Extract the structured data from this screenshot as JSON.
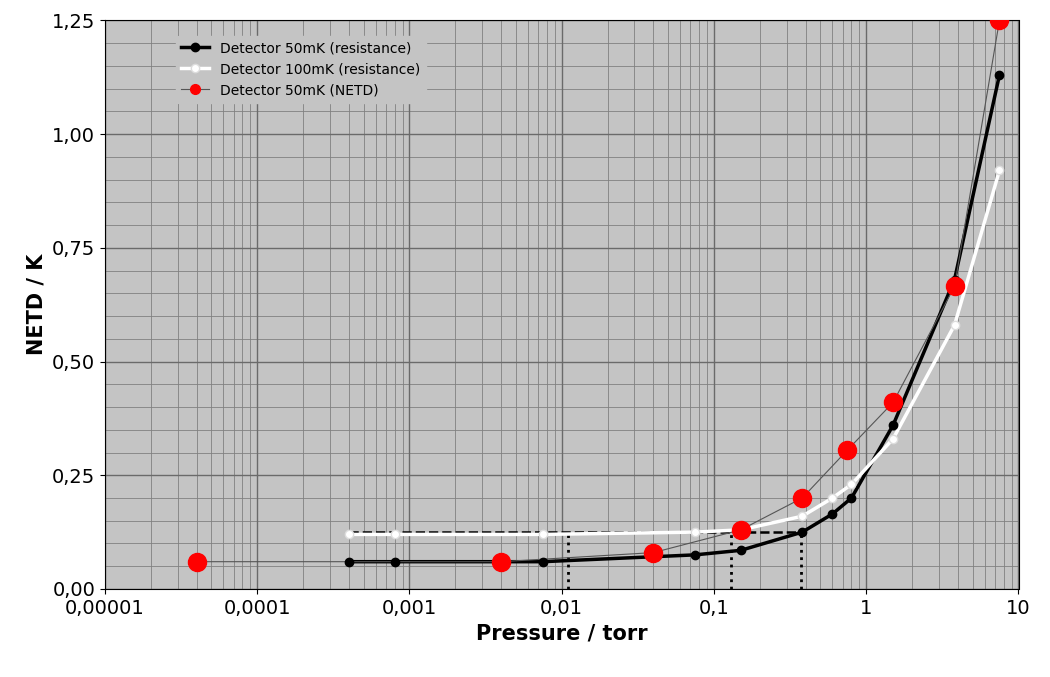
{
  "chart_data": {
    "type": "line",
    "x_label": "Pressure / torr",
    "y_label": "NETD / K",
    "log": "x",
    "grid": true,
    "legend": "upper left",
    "xlim": [
      1e-05,
      10
    ],
    "xticks": [
      {
        "value": 1e-05,
        "label": "0,00001"
      },
      {
        "value": 0.0001,
        "label": "0,0001"
      },
      {
        "value": 0.001,
        "label": "0,001"
      },
      {
        "value": 0.01,
        "label": "0,01"
      },
      {
        "value": 0.1,
        "label": "0,1"
      },
      1,
      10
    ],
    "ylim": [
      0,
      1.25
    ],
    "yticks": [
      {
        "value": 0,
        "label": "0,00"
      },
      {
        "value": 0.25,
        "label": "0,25"
      },
      {
        "value": 0.5,
        "label": "0,50"
      },
      {
        "value": 0.75,
        "label": "0,75"
      },
      {
        "value": 1.0,
        "label": "1,00"
      },
      {
        "value": 1.25,
        "label": "1,25"
      }
    ],
    "series": [
      {
        "name": "Detector 50mK (resistance)",
        "color": "#000000",
        "marker": "o",
        "line_style": "solid",
        "x": [
          0.0004,
          0.0008,
          0.0075,
          0.075,
          0.15,
          0.38,
          0.6,
          0.8,
          1.5,
          3.8,
          7.5
        ],
        "values": [
          0.06,
          0.06,
          0.06,
          0.075,
          0.085,
          0.125,
          0.165,
          0.2,
          0.36,
          0.68,
          1.13
        ]
      },
      {
        "name": "Detector 100mK (resistance)",
        "color": "#ffffff",
        "marker": "o",
        "line_style": "solid",
        "x": [
          0.0004,
          0.0008,
          0.0075,
          0.075,
          0.15,
          0.38,
          0.6,
          0.8,
          1.5,
          3.8,
          7.5
        ],
        "values": [
          0.12,
          0.12,
          0.12,
          0.125,
          0.13,
          0.16,
          0.2,
          0.23,
          0.33,
          0.58,
          0.92
        ]
      },
      {
        "name": "Detector 50mK (NETD)",
        "color": "#ff0000",
        "marker": "o",
        "line_style": "solid",
        "x": [
          4e-05,
          0.004,
          0.04,
          0.15,
          0.38,
          0.75,
          1.5,
          3.8,
          7.5
        ],
        "values": [
          0.06,
          0.06,
          0.08,
          0.13,
          0.2,
          0.305,
          0.41,
          0.665,
          1.25
        ]
      }
    ],
    "guide_lines": {
      "horizontal_y": 0.125,
      "horizontal_x": [
        0.0004,
        0.38
      ],
      "vertical_x": [
        0.011,
        0.13,
        0.37
      ],
      "vertical_top": 0.125
    }
  }
}
